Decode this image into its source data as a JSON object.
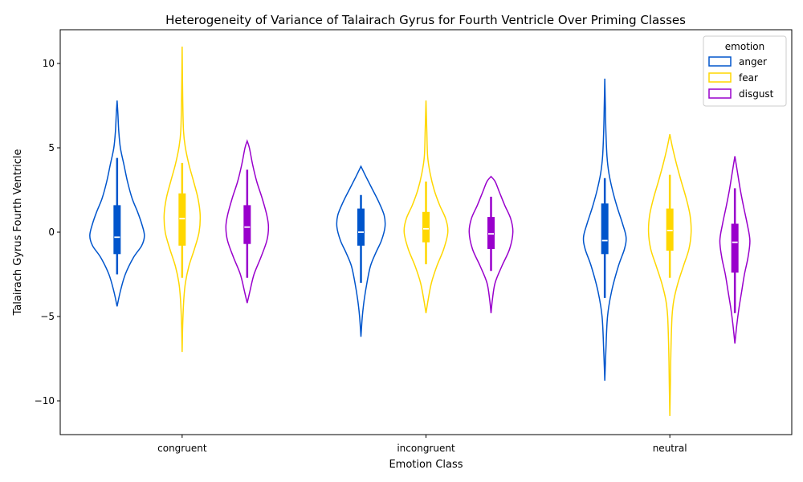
{
  "chart_data": {
    "type": "violin",
    "title": "Heterogeneity of Variance of Talairach Gyrus for Fourth Ventricle Over Priming Classes",
    "xlabel": "Emotion Class",
    "ylabel": "Talairach Gyrus Fourth Ventricle",
    "categories": [
      "congruent",
      "incongruent",
      "neutral"
    ],
    "ylim": [
      -12,
      12
    ],
    "yticks": [
      -10,
      -5,
      0,
      5,
      10
    ],
    "legend": {
      "title": "emotion",
      "position": "top-right"
    },
    "series": [
      {
        "name": "anger",
        "color": "#0055cc",
        "groups": [
          {
            "min": -4.4,
            "max": 7.8,
            "median": -0.3,
            "q1": -1.3,
            "q3": 1.6,
            "whisker_low": -2.5,
            "whisker_high": 4.4,
            "profile": [
              [
                -4.4,
                0.0
              ],
              [
                -3.5,
                0.12
              ],
              [
                -2.5,
                0.3
              ],
              [
                -1.5,
                0.6
              ],
              [
                -0.8,
                0.9
              ],
              [
                -0.2,
                1.0
              ],
              [
                0.5,
                0.9
              ],
              [
                1.2,
                0.75
              ],
              [
                2.0,
                0.55
              ],
              [
                3.0,
                0.38
              ],
              [
                4.0,
                0.25
              ],
              [
                5.0,
                0.12
              ],
              [
                6.0,
                0.06
              ],
              [
                7.0,
                0.03
              ],
              [
                7.8,
                0.0
              ]
            ]
          },
          {
            "min": -6.2,
            "max": 3.9,
            "median": 0.0,
            "q1": -0.8,
            "q3": 1.4,
            "whisker_low": -3.0,
            "whisker_high": 2.2,
            "profile": [
              [
                -6.2,
                0.0
              ],
              [
                -5.0,
                0.05
              ],
              [
                -4.0,
                0.12
              ],
              [
                -3.0,
                0.22
              ],
              [
                -2.0,
                0.35
              ],
              [
                -1.2,
                0.55
              ],
              [
                -0.5,
                0.75
              ],
              [
                0.3,
                0.88
              ],
              [
                1.0,
                0.85
              ],
              [
                1.8,
                0.65
              ],
              [
                2.6,
                0.4
              ],
              [
                3.3,
                0.18
              ],
              [
                3.9,
                0.0
              ]
            ]
          },
          {
            "min": -8.8,
            "max": 9.1,
            "median": -0.5,
            "q1": -1.3,
            "q3": 1.7,
            "whisker_low": -3.9,
            "whisker_high": 3.2,
            "profile": [
              [
                -8.8,
                0.0
              ],
              [
                -7.0,
                0.04
              ],
              [
                -5.0,
                0.1
              ],
              [
                -3.5,
                0.25
              ],
              [
                -2.0,
                0.5
              ],
              [
                -1.0,
                0.72
              ],
              [
                -0.3,
                0.78
              ],
              [
                0.5,
                0.65
              ],
              [
                1.5,
                0.45
              ],
              [
                2.5,
                0.28
              ],
              [
                3.5,
                0.15
              ],
              [
                4.5,
                0.08
              ],
              [
                6.0,
                0.04
              ],
              [
                7.5,
                0.02
              ],
              [
                9.1,
                0.0
              ]
            ]
          }
        ]
      },
      {
        "name": "fear",
        "color": "#ffd700",
        "groups": [
          {
            "min": -7.1,
            "max": 11.0,
            "median": 0.8,
            "q1": -0.8,
            "q3": 2.3,
            "whisker_low": -2.7,
            "whisker_high": 4.1,
            "profile": [
              [
                -7.1,
                0.0
              ],
              [
                -5.5,
                0.02
              ],
              [
                -4.0,
                0.06
              ],
              [
                -3.0,
                0.12
              ],
              [
                -2.0,
                0.25
              ],
              [
                -1.0,
                0.45
              ],
              [
                0.0,
                0.62
              ],
              [
                1.0,
                0.66
              ],
              [
                2.0,
                0.58
              ],
              [
                3.0,
                0.42
              ],
              [
                4.0,
                0.25
              ],
              [
                5.0,
                0.12
              ],
              [
                6.0,
                0.05
              ],
              [
                8.0,
                0.02
              ],
              [
                11.0,
                0.0
              ]
            ]
          },
          {
            "min": -4.8,
            "max": 7.8,
            "median": 0.2,
            "q1": -0.6,
            "q3": 1.2,
            "whisker_low": -1.9,
            "whisker_high": 3.0,
            "profile": [
              [
                -4.8,
                0.0
              ],
              [
                -4.0,
                0.08
              ],
              [
                -3.0,
                0.2
              ],
              [
                -2.0,
                0.4
              ],
              [
                -1.0,
                0.65
              ],
              [
                0.0,
                0.8
              ],
              [
                0.8,
                0.72
              ],
              [
                1.6,
                0.5
              ],
              [
                2.5,
                0.3
              ],
              [
                3.5,
                0.15
              ],
              [
                4.5,
                0.06
              ],
              [
                6.0,
                0.03
              ],
              [
                7.8,
                0.0
              ]
            ]
          },
          {
            "min": -10.9,
            "max": 5.8,
            "median": 0.1,
            "q1": -1.1,
            "q3": 1.4,
            "whisker_low": -2.7,
            "whisker_high": 3.4,
            "profile": [
              [
                -10.9,
                0.0
              ],
              [
                -9.0,
                0.02
              ],
              [
                -7.0,
                0.04
              ],
              [
                -5.0,
                0.08
              ],
              [
                -4.0,
                0.15
              ],
              [
                -3.0,
                0.3
              ],
              [
                -2.0,
                0.5
              ],
              [
                -1.0,
                0.7
              ],
              [
                0.0,
                0.78
              ],
              [
                1.0,
                0.74
              ],
              [
                2.0,
                0.6
              ],
              [
                3.0,
                0.42
              ],
              [
                4.0,
                0.25
              ],
              [
                5.0,
                0.1
              ],
              [
                5.8,
                0.0
              ]
            ]
          }
        ]
      },
      {
        "name": "disgust",
        "color": "#9900cc",
        "groups": [
          {
            "min": -4.2,
            "max": 5.4,
            "median": 0.3,
            "q1": -0.7,
            "q3": 1.6,
            "whisker_low": -2.7,
            "whisker_high": 3.7,
            "profile": [
              [
                -4.2,
                0.0
              ],
              [
                -3.5,
                0.1
              ],
              [
                -2.5,
                0.25
              ],
              [
                -1.5,
                0.5
              ],
              [
                -0.5,
                0.72
              ],
              [
                0.3,
                0.78
              ],
              [
                1.0,
                0.72
              ],
              [
                2.0,
                0.55
              ],
              [
                3.0,
                0.35
              ],
              [
                4.0,
                0.2
              ],
              [
                5.0,
                0.08
              ],
              [
                5.4,
                0.0
              ]
            ]
          },
          {
            "min": -4.8,
            "max": 3.3,
            "median": -0.1,
            "q1": -1.0,
            "q3": 0.9,
            "whisker_low": -2.3,
            "whisker_high": 2.1,
            "profile": [
              [
                -4.8,
                0.0
              ],
              [
                -4.0,
                0.05
              ],
              [
                -3.0,
                0.15
              ],
              [
                -2.0,
                0.4
              ],
              [
                -1.0,
                0.68
              ],
              [
                0.0,
                0.8
              ],
              [
                0.8,
                0.72
              ],
              [
                1.6,
                0.5
              ],
              [
                2.4,
                0.3
              ],
              [
                3.0,
                0.15
              ],
              [
                3.3,
                0.0
              ]
            ]
          },
          {
            "min": -6.6,
            "max": 4.5,
            "median": -0.6,
            "q1": -2.4,
            "q3": 0.5,
            "whisker_low": -4.8,
            "whisker_high": 2.6,
            "profile": [
              [
                -6.6,
                0.0
              ],
              [
                -5.5,
                0.07
              ],
              [
                -4.5,
                0.15
              ],
              [
                -3.5,
                0.25
              ],
              [
                -2.5,
                0.35
              ],
              [
                -1.5,
                0.48
              ],
              [
                -0.5,
                0.55
              ],
              [
                0.5,
                0.45
              ],
              [
                1.5,
                0.32
              ],
              [
                2.5,
                0.2
              ],
              [
                3.5,
                0.1
              ],
              [
                4.5,
                0.0
              ]
            ]
          }
        ]
      }
    ]
  }
}
